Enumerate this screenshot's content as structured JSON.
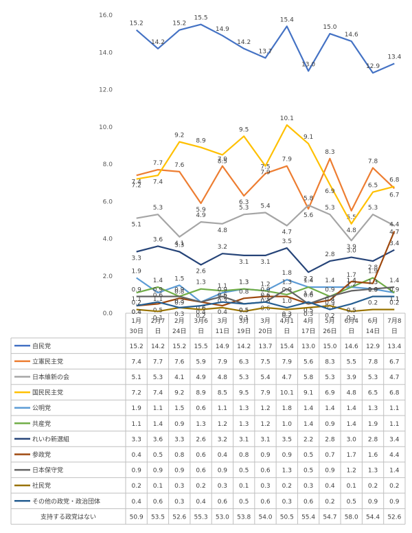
{
  "chart_data": {
    "type": "line",
    "title": "",
    "xlabel": "",
    "ylabel": "",
    "ylim": [
      0,
      16
    ],
    "y_ticks": [
      "0.0",
      "2.0",
      "4.0",
      "6.0",
      "8.0",
      "10.0",
      "12.0",
      "14.0",
      "16.0"
    ],
    "grid": false,
    "legend": "data-table",
    "categories": [
      [
        "1月",
        "30日"
      ],
      [
        "2月7",
        "日"
      ],
      [
        "2月",
        "24日"
      ],
      [
        "3月6",
        "日"
      ],
      [
        "3月",
        "11日"
      ],
      [
        "3月",
        "19日"
      ],
      [
        "3月",
        "20日"
      ],
      [
        "4月1",
        "日"
      ],
      [
        "4月",
        "17日"
      ],
      [
        "5月",
        "26日"
      ],
      [
        "6月4",
        "日"
      ],
      [
        "6月",
        "14日"
      ],
      [
        "7月8",
        "日"
      ]
    ],
    "series": [
      {
        "name": "自民党",
        "color": "#4472C4",
        "values": [
          15.2,
          14.2,
          15.2,
          15.5,
          14.9,
          14.2,
          13.7,
          15.4,
          13.0,
          15.0,
          14.6,
          12.9,
          13.4
        ]
      },
      {
        "name": "立憲民主党",
        "color": "#ED7D31",
        "values": [
          7.4,
          7.7,
          7.6,
          5.9,
          7.9,
          6.3,
          7.5,
          7.9,
          5.6,
          8.3,
          5.5,
          7.8,
          6.7
        ]
      },
      {
        "name": "日本維新の会",
        "color": "#A5A5A5",
        "values": [
          5.1,
          5.3,
          4.1,
          4.9,
          4.8,
          5.3,
          5.4,
          4.7,
          5.8,
          5.3,
          3.9,
          5.3,
          4.7
        ]
      },
      {
        "name": "国民民主党",
        "color": "#FFC000",
        "values": [
          7.2,
          7.4,
          9.2,
          8.9,
          8.5,
          9.5,
          7.9,
          10.1,
          9.1,
          6.9,
          4.8,
          6.5,
          6.8
        ]
      },
      {
        "name": "公明党",
        "color": "#5B9BD5",
        "values": [
          1.9,
          1.1,
          1.5,
          0.6,
          1.1,
          1.3,
          1.2,
          1.8,
          1.4,
          1.4,
          1.4,
          1.3,
          1.1
        ]
      },
      {
        "name": "共産党",
        "color": "#70AD47",
        "values": [
          1.1,
          1.4,
          0.9,
          1.3,
          1.2,
          1.3,
          1.2,
          1.0,
          1.4,
          0.9,
          1.4,
          1.9,
          1.1
        ]
      },
      {
        "name": "れいわ新選組",
        "color": "#264478",
        "values": [
          3.3,
          3.6,
          3.3,
          2.6,
          3.2,
          3.1,
          3.1,
          3.5,
          2.2,
          2.8,
          3.0,
          2.8,
          3.4
        ]
      },
      {
        "name": "参政党",
        "color": "#9E480E",
        "values": [
          0.4,
          0.5,
          0.8,
          0.6,
          0.4,
          0.8,
          0.9,
          0.9,
          0.5,
          0.7,
          1.7,
          1.6,
          4.4
        ]
      },
      {
        "name": "日本保守党",
        "color": "#636363",
        "values": [
          0.9,
          0.9,
          0.9,
          0.6,
          0.9,
          0.5,
          0.6,
          1.3,
          0.5,
          0.9,
          1.2,
          1.3,
          1.4
        ]
      },
      {
        "name": "社民党",
        "color": "#997300",
        "values": [
          0.2,
          0.1,
          0.3,
          0.2,
          0.3,
          0.1,
          0.3,
          0.2,
          0.3,
          0.4,
          0.1,
          0.2,
          0.2
        ]
      },
      {
        "name": "その他の政党・政治団体",
        "color": "#255E91",
        "values": [
          0.4,
          0.6,
          0.3,
          0.4,
          0.6,
          0.5,
          0.6,
          0.3,
          0.6,
          0.2,
          0.5,
          0.9,
          0.9
        ]
      }
    ],
    "extra_table_row": {
      "name": "支持する政党はない",
      "values": [
        50.9,
        53.5,
        52.6,
        55.3,
        53.0,
        53.8,
        54.0,
        50.5,
        55.4,
        54.7,
        58.0,
        54.4,
        52.6
      ]
    }
  }
}
